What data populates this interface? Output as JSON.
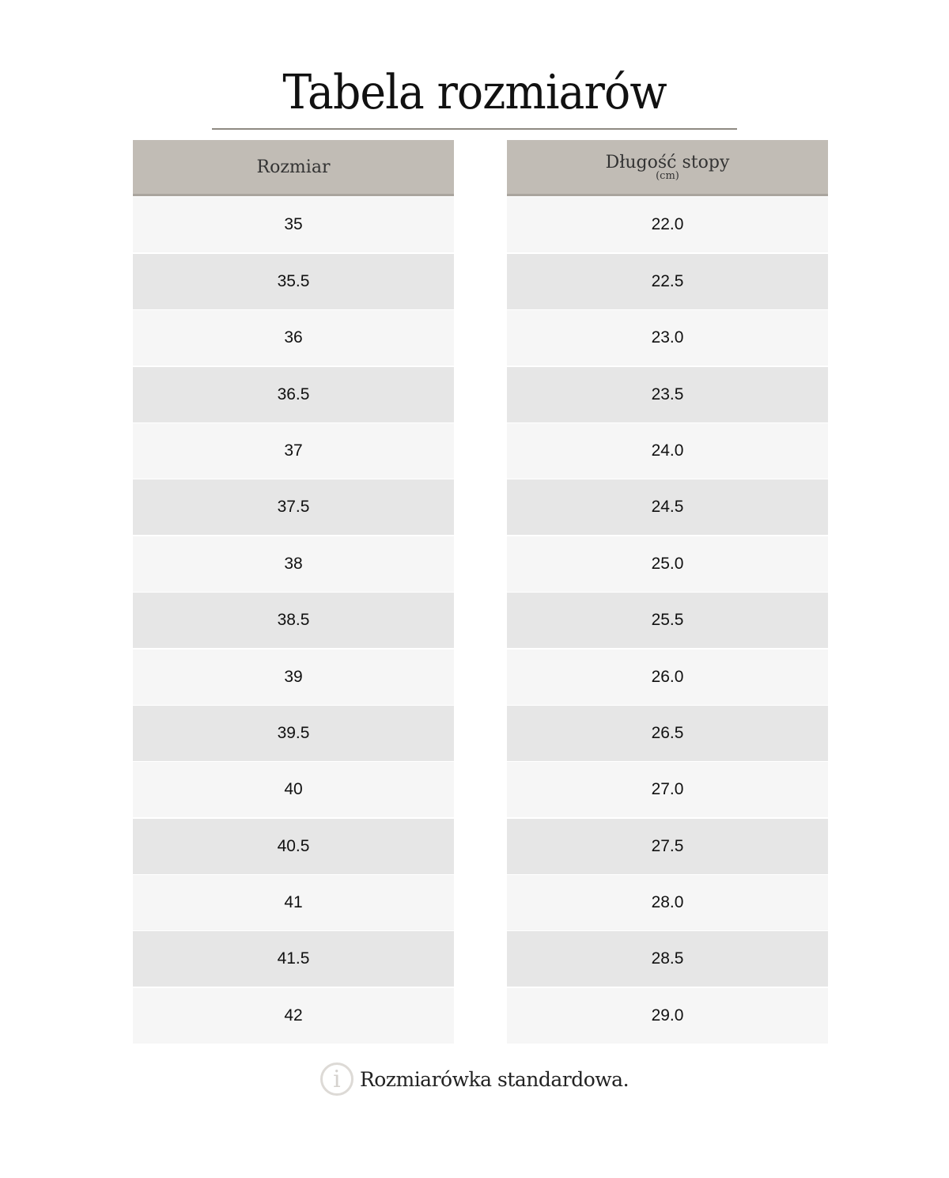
{
  "title": "Tabela rozmiarów",
  "columns": {
    "size": {
      "label": "Rozmiar"
    },
    "length": {
      "label": "Długość stopy",
      "unit": "(cm)"
    }
  },
  "sizes": [
    "35",
    "35.5",
    "36",
    "36.5",
    "37",
    "37.5",
    "38",
    "38.5",
    "39",
    "39.5",
    "40",
    "40.5",
    "41",
    "41.5",
    "42"
  ],
  "lengths": [
    "22.0",
    "22.5",
    "23.0",
    "23.5",
    "24.0",
    "24.5",
    "25.0",
    "25.5",
    "26.0",
    "26.5",
    "27.0",
    "27.5",
    "28.0",
    "28.5",
    "29.0"
  ],
  "footer": {
    "icon": "info-icon",
    "text": "Rozmiarówka standardowa."
  },
  "colors": {
    "header_bg": "#c1bcb5",
    "row_light": "#f6f6f6",
    "row_dark": "#e6e6e6",
    "rule": "#8f8a82"
  }
}
